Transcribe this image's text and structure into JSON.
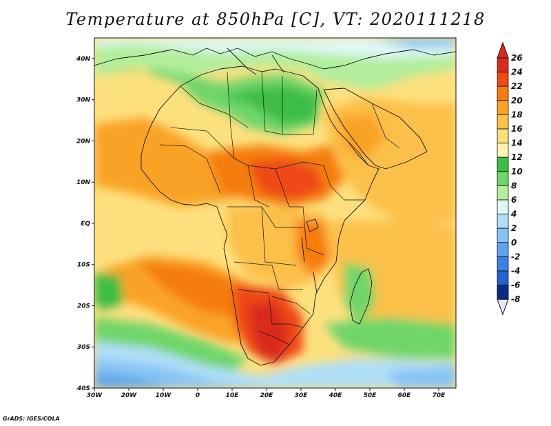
{
  "title": "Temperature at 850hPa [C], VT: 2020111218",
  "credit": "GrADS: IGES/COLA",
  "map": {
    "lon_range": [
      -30,
      75
    ],
    "lat_range": [
      -40,
      45
    ],
    "x_ticks": [
      {
        "value": -30,
        "label": "30W"
      },
      {
        "value": -20,
        "label": "20W"
      },
      {
        "value": -10,
        "label": "10W"
      },
      {
        "value": 0,
        "label": "0"
      },
      {
        "value": 10,
        "label": "10E"
      },
      {
        "value": 20,
        "label": "20E"
      },
      {
        "value": 30,
        "label": "30E"
      },
      {
        "value": 40,
        "label": "40E"
      },
      {
        "value": 50,
        "label": "50E"
      },
      {
        "value": 60,
        "label": "60E"
      },
      {
        "value": 70,
        "label": "70E"
      }
    ],
    "y_ticks": [
      {
        "value": 40,
        "label": "40N"
      },
      {
        "value": 30,
        "label": "30N"
      },
      {
        "value": 20,
        "label": "20N"
      },
      {
        "value": 10,
        "label": "10N"
      },
      {
        "value": 0,
        "label": "EQ"
      },
      {
        "value": -10,
        "label": "10S"
      },
      {
        "value": -20,
        "label": "20S"
      },
      {
        "value": -30,
        "label": "30S"
      },
      {
        "value": -40,
        "label": "40S"
      }
    ]
  },
  "colorbar": {
    "levels": [
      {
        "value": "26",
        "color": "#d92a1c"
      },
      {
        "value": "24",
        "color": "#ee4a16"
      },
      {
        "value": "22",
        "color": "#f57d10"
      },
      {
        "value": "20",
        "color": "#f9a326"
      },
      {
        "value": "18",
        "color": "#fbc04a"
      },
      {
        "value": "16",
        "color": "#fde07e"
      },
      {
        "value": "14",
        "color": "#fdf4b2"
      },
      {
        "value": "12",
        "color": "#3dbd44"
      },
      {
        "value": "10",
        "color": "#6fd66a"
      },
      {
        "value": "8",
        "color": "#b2ee9c"
      },
      {
        "value": "6",
        "color": "#def8f6"
      },
      {
        "value": "4",
        "color": "#b0dff8"
      },
      {
        "value": "2",
        "color": "#87c4f6"
      },
      {
        "value": "0",
        "color": "#5ea3ec"
      },
      {
        "value": "-2",
        "color": "#3b82e0"
      },
      {
        "value": "-4",
        "color": "#2561cf"
      },
      {
        "value": "-6",
        "color": "#1240b2"
      },
      {
        "value": "-8",
        "color": "#0c2a84"
      }
    ],
    "top_color": "#d92a1c",
    "bottom_color": "#e6e8fa"
  },
  "colors": {
    "ocean_base": "#fde07e",
    "land_outline": "#111111"
  }
}
